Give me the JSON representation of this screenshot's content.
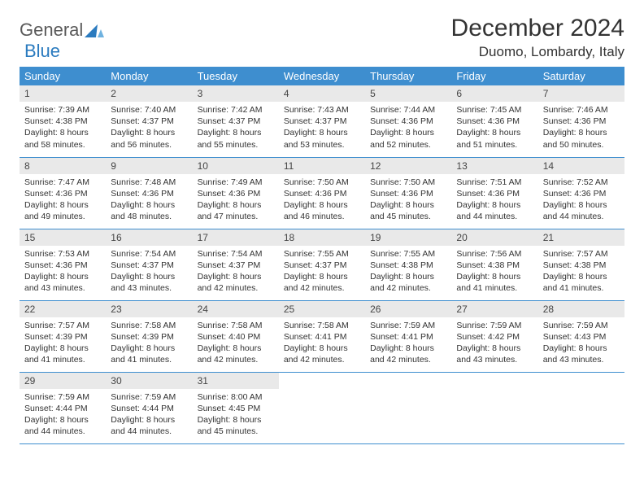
{
  "logo": {
    "word1": "General",
    "word2": "Blue"
  },
  "title": "December 2024",
  "location": "Duomo, Lombardy, Italy",
  "colors": {
    "header_bg": "#3e8ecf",
    "header_text": "#ffffff",
    "daynum_bg": "#e9e9e9",
    "logo_gray": "#5a5a5a",
    "logo_blue": "#2b7bbf"
  },
  "weekdays": [
    "Sunday",
    "Monday",
    "Tuesday",
    "Wednesday",
    "Thursday",
    "Friday",
    "Saturday"
  ],
  "weeks": [
    [
      {
        "n": "1",
        "sr": "Sunrise: 7:39 AM",
        "ss": "Sunset: 4:38 PM",
        "d1": "Daylight: 8 hours",
        "d2": "and 58 minutes."
      },
      {
        "n": "2",
        "sr": "Sunrise: 7:40 AM",
        "ss": "Sunset: 4:37 PM",
        "d1": "Daylight: 8 hours",
        "d2": "and 56 minutes."
      },
      {
        "n": "3",
        "sr": "Sunrise: 7:42 AM",
        "ss": "Sunset: 4:37 PM",
        "d1": "Daylight: 8 hours",
        "d2": "and 55 minutes."
      },
      {
        "n": "4",
        "sr": "Sunrise: 7:43 AM",
        "ss": "Sunset: 4:37 PM",
        "d1": "Daylight: 8 hours",
        "d2": "and 53 minutes."
      },
      {
        "n": "5",
        "sr": "Sunrise: 7:44 AM",
        "ss": "Sunset: 4:36 PM",
        "d1": "Daylight: 8 hours",
        "d2": "and 52 minutes."
      },
      {
        "n": "6",
        "sr": "Sunrise: 7:45 AM",
        "ss": "Sunset: 4:36 PM",
        "d1": "Daylight: 8 hours",
        "d2": "and 51 minutes."
      },
      {
        "n": "7",
        "sr": "Sunrise: 7:46 AM",
        "ss": "Sunset: 4:36 PM",
        "d1": "Daylight: 8 hours",
        "d2": "and 50 minutes."
      }
    ],
    [
      {
        "n": "8",
        "sr": "Sunrise: 7:47 AM",
        "ss": "Sunset: 4:36 PM",
        "d1": "Daylight: 8 hours",
        "d2": "and 49 minutes."
      },
      {
        "n": "9",
        "sr": "Sunrise: 7:48 AM",
        "ss": "Sunset: 4:36 PM",
        "d1": "Daylight: 8 hours",
        "d2": "and 48 minutes."
      },
      {
        "n": "10",
        "sr": "Sunrise: 7:49 AM",
        "ss": "Sunset: 4:36 PM",
        "d1": "Daylight: 8 hours",
        "d2": "and 47 minutes."
      },
      {
        "n": "11",
        "sr": "Sunrise: 7:50 AM",
        "ss": "Sunset: 4:36 PM",
        "d1": "Daylight: 8 hours",
        "d2": "and 46 minutes."
      },
      {
        "n": "12",
        "sr": "Sunrise: 7:50 AM",
        "ss": "Sunset: 4:36 PM",
        "d1": "Daylight: 8 hours",
        "d2": "and 45 minutes."
      },
      {
        "n": "13",
        "sr": "Sunrise: 7:51 AM",
        "ss": "Sunset: 4:36 PM",
        "d1": "Daylight: 8 hours",
        "d2": "and 44 minutes."
      },
      {
        "n": "14",
        "sr": "Sunrise: 7:52 AM",
        "ss": "Sunset: 4:36 PM",
        "d1": "Daylight: 8 hours",
        "d2": "and 44 minutes."
      }
    ],
    [
      {
        "n": "15",
        "sr": "Sunrise: 7:53 AM",
        "ss": "Sunset: 4:36 PM",
        "d1": "Daylight: 8 hours",
        "d2": "and 43 minutes."
      },
      {
        "n": "16",
        "sr": "Sunrise: 7:54 AM",
        "ss": "Sunset: 4:37 PM",
        "d1": "Daylight: 8 hours",
        "d2": "and 43 minutes."
      },
      {
        "n": "17",
        "sr": "Sunrise: 7:54 AM",
        "ss": "Sunset: 4:37 PM",
        "d1": "Daylight: 8 hours",
        "d2": "and 42 minutes."
      },
      {
        "n": "18",
        "sr": "Sunrise: 7:55 AM",
        "ss": "Sunset: 4:37 PM",
        "d1": "Daylight: 8 hours",
        "d2": "and 42 minutes."
      },
      {
        "n": "19",
        "sr": "Sunrise: 7:55 AM",
        "ss": "Sunset: 4:38 PM",
        "d1": "Daylight: 8 hours",
        "d2": "and 42 minutes."
      },
      {
        "n": "20",
        "sr": "Sunrise: 7:56 AM",
        "ss": "Sunset: 4:38 PM",
        "d1": "Daylight: 8 hours",
        "d2": "and 41 minutes."
      },
      {
        "n": "21",
        "sr": "Sunrise: 7:57 AM",
        "ss": "Sunset: 4:38 PM",
        "d1": "Daylight: 8 hours",
        "d2": "and 41 minutes."
      }
    ],
    [
      {
        "n": "22",
        "sr": "Sunrise: 7:57 AM",
        "ss": "Sunset: 4:39 PM",
        "d1": "Daylight: 8 hours",
        "d2": "and 41 minutes."
      },
      {
        "n": "23",
        "sr": "Sunrise: 7:58 AM",
        "ss": "Sunset: 4:39 PM",
        "d1": "Daylight: 8 hours",
        "d2": "and 41 minutes."
      },
      {
        "n": "24",
        "sr": "Sunrise: 7:58 AM",
        "ss": "Sunset: 4:40 PM",
        "d1": "Daylight: 8 hours",
        "d2": "and 42 minutes."
      },
      {
        "n": "25",
        "sr": "Sunrise: 7:58 AM",
        "ss": "Sunset: 4:41 PM",
        "d1": "Daylight: 8 hours",
        "d2": "and 42 minutes."
      },
      {
        "n": "26",
        "sr": "Sunrise: 7:59 AM",
        "ss": "Sunset: 4:41 PM",
        "d1": "Daylight: 8 hours",
        "d2": "and 42 minutes."
      },
      {
        "n": "27",
        "sr": "Sunrise: 7:59 AM",
        "ss": "Sunset: 4:42 PM",
        "d1": "Daylight: 8 hours",
        "d2": "and 43 minutes."
      },
      {
        "n": "28",
        "sr": "Sunrise: 7:59 AM",
        "ss": "Sunset: 4:43 PM",
        "d1": "Daylight: 8 hours",
        "d2": "and 43 minutes."
      }
    ],
    [
      {
        "n": "29",
        "sr": "Sunrise: 7:59 AM",
        "ss": "Sunset: 4:44 PM",
        "d1": "Daylight: 8 hours",
        "d2": "and 44 minutes."
      },
      {
        "n": "30",
        "sr": "Sunrise: 7:59 AM",
        "ss": "Sunset: 4:44 PM",
        "d1": "Daylight: 8 hours",
        "d2": "and 44 minutes."
      },
      {
        "n": "31",
        "sr": "Sunrise: 8:00 AM",
        "ss": "Sunset: 4:45 PM",
        "d1": "Daylight: 8 hours",
        "d2": "and 45 minutes."
      },
      {
        "empty": true
      },
      {
        "empty": true
      },
      {
        "empty": true
      },
      {
        "empty": true
      }
    ]
  ]
}
